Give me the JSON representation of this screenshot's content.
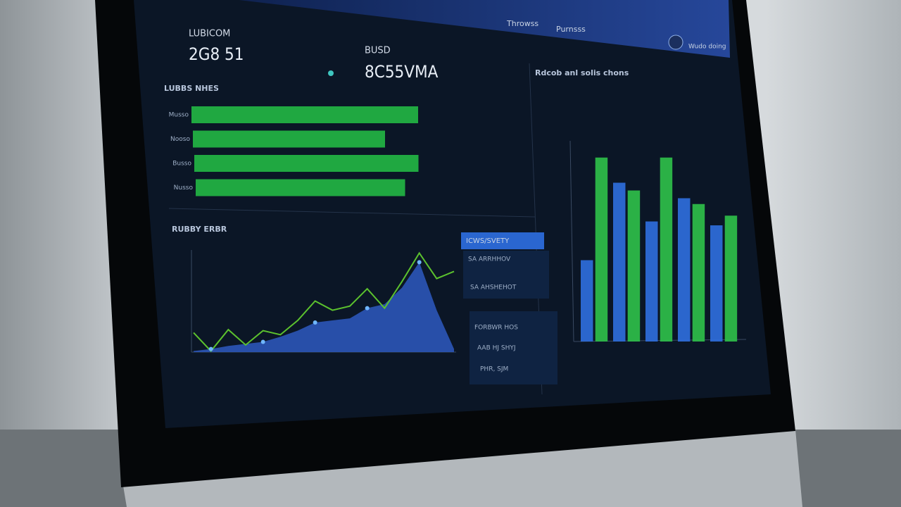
{
  "header": {
    "tabs": [
      "Throwss",
      "Purnsss"
    ],
    "user": "Wudo doing"
  },
  "kpis": [
    {
      "label": "LUBICOM",
      "value": "2G8 51"
    },
    {
      "label": "BUSD",
      "value": "8C55VMA"
    }
  ],
  "chart_data": [
    {
      "type": "hbar",
      "title": "LUBBS NHES",
      "categories": [
        "Musso",
        "Nooso",
        "Busso",
        "Nusso"
      ],
      "values": [
        92,
        78,
        91,
        85
      ],
      "color": "#22b845",
      "xlim": [
        0,
        100
      ]
    },
    {
      "type": "area-line",
      "title": "RUBBY ERBR",
      "categories": [
        null,
        null,
        null,
        null,
        null,
        null,
        null,
        null,
        null,
        null,
        null,
        null,
        null,
        null,
        null,
        null
      ],
      "ylim": [
        0,
        100
      ],
      "series": [
        {
          "color": "#5cc22e",
          "values": [
            19,
            1,
            22,
            7,
            21,
            17,
            31,
            50,
            41,
            45,
            62,
            43,
            69,
            97,
            72,
            79
          ]
        },
        {
          "color": "#2b55b8",
          "values": [
            1,
            3,
            6,
            8,
            10,
            15,
            21,
            29,
            31,
            33,
            43,
            47,
            63,
            88,
            41,
            3
          ]
        }
      ]
    },
    {
      "type": "vbar",
      "title": "Rdcob anl solis chons",
      "categories": [
        null,
        null,
        null,
        null,
        null
      ],
      "ylim": [
        0,
        100
      ],
      "series": [
        {
          "color": "#2f6fe0",
          "values": [
            42,
            82,
            62,
            74,
            60
          ]
        },
        {
          "color": "#2fc24a",
          "values": [
            95,
            78,
            95,
            71,
            65
          ]
        }
      ]
    }
  ],
  "panel": {
    "title": "ICWS/SVETY",
    "rows": [
      "SA ARRHHOV",
      "SA AHSHEHOT"
    ],
    "rows2": [
      "FORBWR HOS",
      "AAB HJ SHYJ",
      "PHR, SJM"
    ]
  }
}
